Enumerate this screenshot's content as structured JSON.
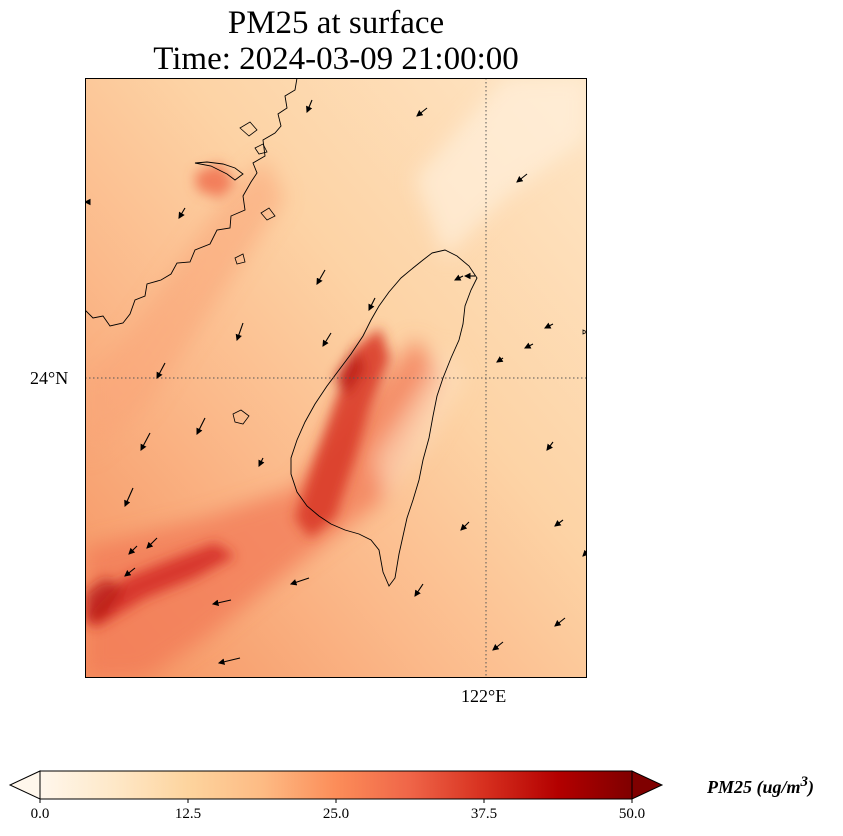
{
  "figure": {
    "title_line1": "PM25 at surface",
    "title_line2": "Time: 2024-03-09 21:00:00"
  },
  "map": {
    "variable": "PM25",
    "lat_labels": [
      "24°N"
    ],
    "lon_labels": [
      "122°E"
    ],
    "gridlines": "dotted",
    "coastline_color": "#000000",
    "wind_vectors": "black arrows, predominantly north-easterly flow (pointing south-west)"
  },
  "colorbar": {
    "label": "PM25 (ug/m",
    "label_sup": "3",
    "label_close": ")",
    "ticks": [
      "0.0",
      "12.5",
      "25.0",
      "37.5",
      "50.0"
    ],
    "vmin": 0.0,
    "vmax": 50.0,
    "colormap": "OrRd",
    "stops": [
      "#fff7ec",
      "#fee8c8",
      "#fdd49e",
      "#fdbb84",
      "#fc8d59",
      "#ef6548",
      "#d7301f",
      "#b30000",
      "#7f0000"
    ]
  }
}
